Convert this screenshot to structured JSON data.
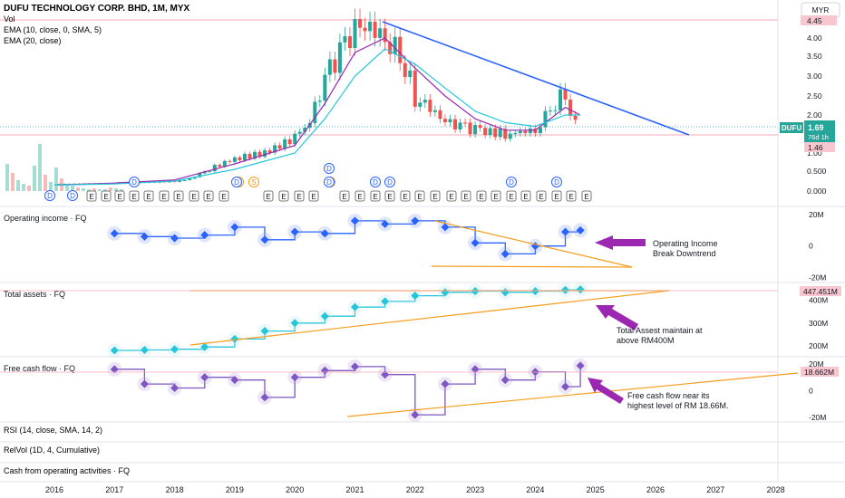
{
  "header": {
    "title": "DUFU TECHNOLOGY CORP. BHD, 1M, MYX",
    "indicators": [
      "Vol",
      "EMA (10, close, 0, SMA, 5)",
      "EMA (20, close)"
    ],
    "currency": "MYR"
  },
  "colors": {
    "up": "#26a69a",
    "down": "#ef5350",
    "ema10": "#9c27b0",
    "ema20": "#26c6da",
    "trend_blue": "#2962ff",
    "trend_orange": "#f59d1e",
    "op_line": "#2962ff",
    "assets_line": "#26c6da",
    "fcf_line": "#7e57c2",
    "arrow": "#9c27b0",
    "hline": "#f7a8b8"
  },
  "price_labels": {
    "top": "4.45",
    "ticker": "DUFU",
    "last": "1.69",
    "countdown": "76d 1h",
    "support": "1.46"
  },
  "chart_data": [
    {
      "type": "candlestick",
      "title": "DUFU TECHNOLOGY CORP. BHD, 1M, MYX",
      "x_ticks": [
        "2016",
        "2017",
        "2018",
        "2019",
        "2020",
        "2021",
        "2022",
        "2023",
        "2024",
        "2025",
        "2026",
        "2027",
        "2028"
      ],
      "y_scale": "log",
      "y_ticks": [
        "4.00",
        "3.50",
        "3.00",
        "2.50",
        "2.00",
        "1.50",
        "1.00",
        "0.500",
        "0.000"
      ],
      "highlights": [
        "4.45",
        "1.46"
      ],
      "series": [
        {
          "name": "Price",
          "x": [
            "2016-01",
            "2016-07",
            "2017-01",
            "2017-07",
            "2018-01",
            "2018-04",
            "2018-07",
            "2019-01",
            "2019-07",
            "2020-01",
            "2020-04",
            "2020-07",
            "2020-10",
            "2021-01",
            "2021-04",
            "2021-07",
            "2021-10",
            "2022-01",
            "2022-04",
            "2022-07",
            "2022-10",
            "2023-01",
            "2023-07",
            "2024-01",
            "2024-04",
            "2024-07",
            "2024-09"
          ],
          "close": [
            0.18,
            0.18,
            0.2,
            0.22,
            0.25,
            0.3,
            0.5,
            0.85,
            1.0,
            1.4,
            1.8,
            2.9,
            3.6,
            4.2,
            4.3,
            4.0,
            3.6,
            2.5,
            2.2,
            1.8,
            1.7,
            1.6,
            1.5,
            1.6,
            2.2,
            2.6,
            1.69
          ]
        },
        {
          "name": "EMA (10, close, 0, SMA, 5)",
          "x": [
            "2016-01",
            "2017-01",
            "2018-01",
            "2019-01",
            "2020-01",
            "2020-07",
            "2021-01",
            "2021-07",
            "2022-01",
            "2022-07",
            "2023-01",
            "2023-07",
            "2024-01",
            "2024-07",
            "2024-10"
          ],
          "values": [
            0.15,
            0.2,
            0.28,
            0.7,
            1.2,
            2.3,
            3.6,
            4.0,
            3.2,
            2.5,
            1.9,
            1.6,
            1.6,
            2.2,
            2.0
          ]
        },
        {
          "name": "EMA (20, close)",
          "x": [
            "2016-01",
            "2017-01",
            "2018-01",
            "2019-01",
            "2020-01",
            "2020-07",
            "2021-01",
            "2021-07",
            "2022-01",
            "2022-07",
            "2023-01",
            "2023-07",
            "2024-01",
            "2024-07",
            "2024-10"
          ],
          "values": [
            0.15,
            0.18,
            0.25,
            0.55,
            1.0,
            1.9,
            3.0,
            3.7,
            3.3,
            2.7,
            2.1,
            1.8,
            1.7,
            2.0,
            2.0
          ]
        }
      ]
    },
    {
      "type": "line",
      "title": "Operating income · FQ",
      "y_ticks": [
        "20M",
        "0",
        "-20M"
      ],
      "series": [
        {
          "name": "Operating income",
          "x": [
            "2017-01",
            "2017-07",
            "2018-01",
            "2018-07",
            "2019-01",
            "2019-07",
            "2020-01",
            "2020-07",
            "2021-01",
            "2021-07",
            "2022-01",
            "2022-07",
            "2023-01",
            "2023-07",
            "2024-01",
            "2024-07",
            "2024-10"
          ],
          "values": [
            8,
            6,
            5,
            7,
            12,
            4,
            9,
            8,
            16,
            14,
            16,
            12,
            2,
            -5,
            0,
            9,
            10
          ]
        }
      ]
    },
    {
      "type": "line",
      "title": "Total assets · FQ",
      "y_ticks": [
        "400M",
        "300M",
        "200M"
      ],
      "last_value": "447.451M",
      "series": [
        {
          "name": "Total assets",
          "x": [
            "2017-01",
            "2017-07",
            "2018-01",
            "2018-07",
            "2019-01",
            "2019-07",
            "2020-01",
            "2020-07",
            "2021-01",
            "2021-07",
            "2022-01",
            "2022-07",
            "2023-01",
            "2023-07",
            "2024-01",
            "2024-07",
            "2024-10"
          ],
          "values": [
            180,
            182,
            185,
            195,
            230,
            265,
            300,
            330,
            370,
            395,
            420,
            435,
            440,
            435,
            440,
            445,
            447.451
          ]
        }
      ]
    },
    {
      "type": "line",
      "title": "Free cash flow · FQ",
      "y_ticks": [
        "20M",
        "0",
        "-20M"
      ],
      "last_value": "18.662M",
      "series": [
        {
          "name": "Free cash flow",
          "x": [
            "2017-01",
            "2017-07",
            "2018-01",
            "2018-07",
            "2019-01",
            "2019-07",
            "2020-01",
            "2020-07",
            "2021-01",
            "2021-07",
            "2022-01",
            "2022-07",
            "2023-01",
            "2023-07",
            "2024-01",
            "2024-07",
            "2024-10"
          ],
          "values": [
            16,
            5,
            2,
            10,
            8,
            -5,
            10,
            15,
            18,
            12,
            -18,
            5,
            16,
            8,
            14,
            3,
            18.662
          ]
        }
      ]
    }
  ],
  "annotations": {
    "operating": "Operating Income\nBreak Downtrend",
    "assets": "Total Assest maintain at\nabove RM400M",
    "fcf": "Free cash flow near its\nhighest level of RM 18.66M."
  },
  "collapsed_panes": [
    "RSI (14, close, SMA, 14, 2)",
    "RelVol (1D, 4, Cumulative)",
    "Cash from operating activities · FQ"
  ],
  "event_badges": {
    "dividend": "D",
    "earnings": "E",
    "split": "S"
  }
}
